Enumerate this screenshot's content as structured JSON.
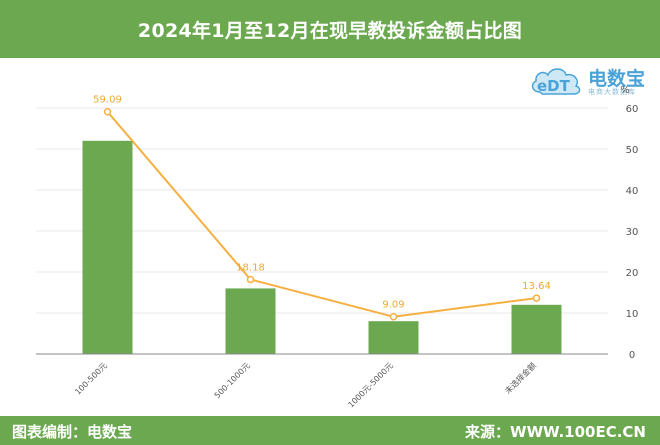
{
  "header": {
    "title": "2024年1月至12月在现早教投诉金额占比图"
  },
  "footer": {
    "left_text": "图表编制：电数宝",
    "right_text": "来源：WWW.100EC.CN"
  },
  "logo": {
    "brand": "电数宝",
    "mark": "eDT",
    "tagline": "电商大数据库"
  },
  "chart_data": {
    "type": "bar",
    "categories": [
      "100-500元",
      "500-1000元",
      "1000元-5000元",
      "未选择金额"
    ],
    "series": [
      {
        "type": "bar",
        "values": [
          52,
          16,
          8,
          12
        ]
      },
      {
        "type": "line",
        "values": [
          59.09,
          18.18,
          9.09,
          13.64
        ],
        "data_labels": [
          "59.09",
          "18.18",
          "9.09",
          "13.64"
        ]
      }
    ],
    "y_axis": {
      "unit_label": "%",
      "position": "right",
      "min": 0,
      "max": 60,
      "ticks": [
        0,
        10,
        20,
        30,
        40,
        50,
        60
      ]
    },
    "grid": true,
    "colors": {
      "bar": "#6ba84f",
      "line": "#f5b041",
      "label": "#f0a830"
    }
  }
}
